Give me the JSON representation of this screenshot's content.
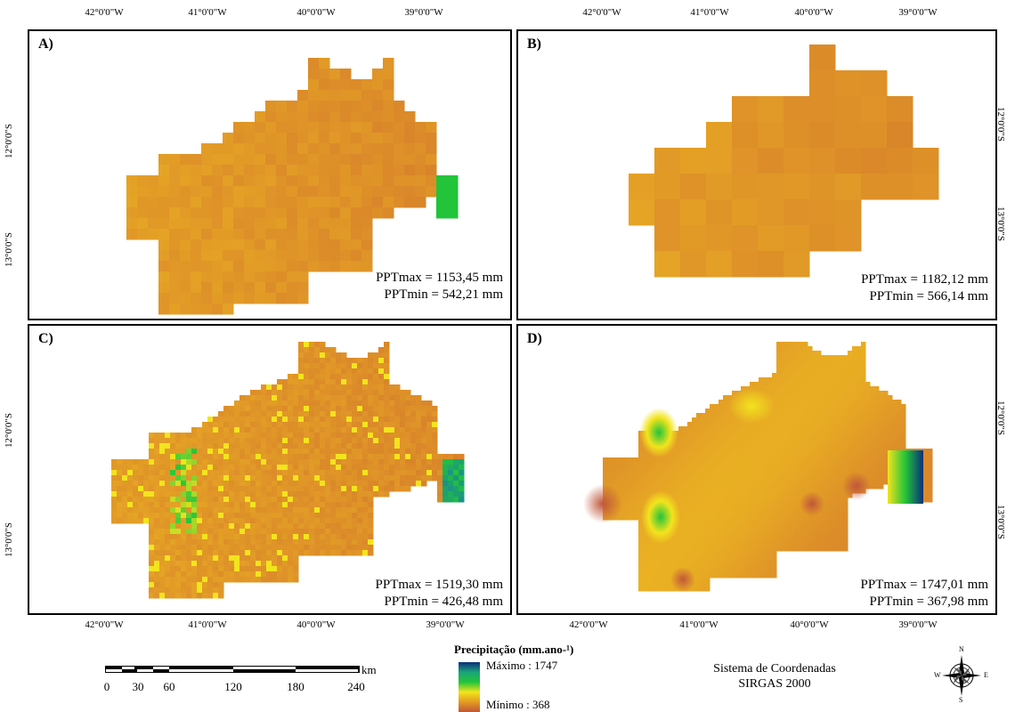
{
  "coords": {
    "top_left": [
      "42°0'0\"W",
      "41°0'0\"W",
      "40°0'0\"W",
      "39°0'0\"W"
    ],
    "top_right": [
      "42°0'0\"W",
      "41°0'0\"W",
      "40°0'0\"W",
      "39°0'0\"W"
    ],
    "bottom_left": [
      "42°0'0\"W",
      "41°0'0\"W",
      "40°0'0\"W",
      "39°0'0\"W"
    ],
    "bottom_right": [
      "42°0'0\"W",
      "41°0'0\"W",
      "40°0'0\"W",
      "39°0'0\"W"
    ],
    "lat_top": [
      "12°0'0\"S",
      "13°0'0\"S"
    ],
    "lat_bottom": [
      "12°0'0\"S",
      "13°0'0\"S"
    ]
  },
  "panels": [
    {
      "label": "A)",
      "max_label": "PPTmax = 1153,45 mm",
      "min_label": "PPTmin =  542,21 mm"
    },
    {
      "label": "B)",
      "max_label": "PPTmax = 1182,12 mm",
      "min_label": "PPTmin = 566,14 mm"
    },
    {
      "label": "C)",
      "max_label": "PPTmax = 1519,30 mm",
      "min_label": "PPTmin = 426,48 mm"
    },
    {
      "label": "D)",
      "max_label": "PPTmax = 1747,01 mm",
      "min_label": "PPTmin = 367,98 mm"
    }
  ],
  "scalebar": {
    "ticks": [
      "0",
      "30",
      "60",
      "120",
      "180",
      "240"
    ],
    "unit": "km"
  },
  "legend": {
    "title": "Precipitação (mm.ano-¹)",
    "max_label": "Máximo : 1747",
    "min_label": "Mínimo : 368",
    "colors": [
      "#0b2f7a",
      "#1aa37a",
      "#22c43a",
      "#f2e41d",
      "#e39a22",
      "#c0573a"
    ]
  },
  "crs": {
    "line1": "Sistema de Coordenadas",
    "line2": "SIRGAS 2000"
  },
  "compass": {
    "n": "N",
    "s": "S",
    "e": "E",
    "w": "W"
  }
}
